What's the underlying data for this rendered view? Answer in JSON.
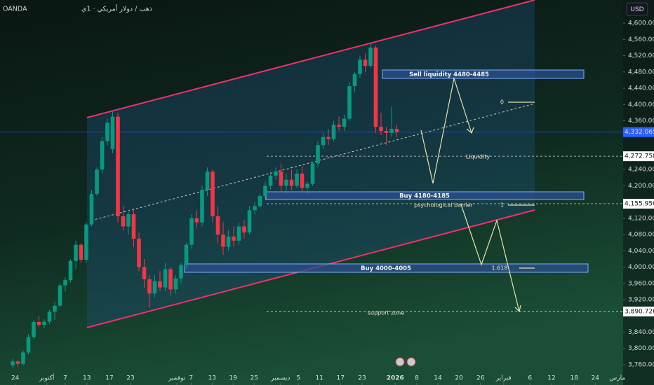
{
  "chart_data": {
    "type": "candlestick",
    "broker": "OANDA",
    "symbol_title": "ذهب / دولار أمريكي · 1ي",
    "currency": "USD",
    "ylim": [
      3710,
      4657
    ],
    "yticks": [
      {
        "value": 4600,
        "label": "4,600.000"
      },
      {
        "value": 4560,
        "label": "4,560.000"
      },
      {
        "value": 4520,
        "label": "4,520.000"
      },
      {
        "value": 4480,
        "label": "4,480.000"
      },
      {
        "value": 4440,
        "label": "4,440.000"
      },
      {
        "value": 4400,
        "label": "4,400.000"
      },
      {
        "value": 4360,
        "label": "4,360.000"
      },
      {
        "value": 4240,
        "label": "4,240.000"
      },
      {
        "value": 4200,
        "label": "4,200.000"
      },
      {
        "value": 4120,
        "label": "4,120.000"
      },
      {
        "value": 4080,
        "label": "4,080.000"
      },
      {
        "value": 4040,
        "label": "4,040.000"
      },
      {
        "value": 4000,
        "label": "4,000.000"
      },
      {
        "value": 3960,
        "label": "3,960.000"
      },
      {
        "value": 3920,
        "label": "3,920.000"
      },
      {
        "value": 3840,
        "label": "3,840.000"
      },
      {
        "value": 3800,
        "label": "3,800.000"
      },
      {
        "value": 3760,
        "label": "3,760.000"
      }
    ],
    "xlim": [
      -2.4,
      116
    ],
    "xticks": [
      {
        "value": 0.5,
        "label": "24"
      },
      {
        "value": 6.5,
        "label": "أكتوبر"
      },
      {
        "value": 10,
        "label": "7"
      },
      {
        "value": 14.1,
        "label": "13"
      },
      {
        "value": 18.4,
        "label": "17"
      },
      {
        "value": 22.4,
        "label": "23"
      },
      {
        "value": 31.2,
        "label": "نوفمبر"
      },
      {
        "value": 33.9,
        "label": "7"
      },
      {
        "value": 37.9,
        "label": "13"
      },
      {
        "value": 41.9,
        "label": "19"
      },
      {
        "value": 45.9,
        "label": "25"
      },
      {
        "value": 50.9,
        "label": "ديسمبر"
      },
      {
        "value": 54.3,
        "label": "5"
      },
      {
        "value": 58.3,
        "label": "11"
      },
      {
        "value": 62.3,
        "label": "17"
      },
      {
        "value": 66.4,
        "label": "23"
      },
      {
        "value": 72.7,
        "label": "2026"
      },
      {
        "value": 76.8,
        "label": "8"
      },
      {
        "value": 80.8,
        "label": "14"
      },
      {
        "value": 84.8,
        "label": "20"
      },
      {
        "value": 88.9,
        "label": "26"
      },
      {
        "value": 93.3,
        "label": "فبراير"
      },
      {
        "value": 98.3,
        "label": "6"
      },
      {
        "value": 102.4,
        "label": "12"
      },
      {
        "value": 106.7,
        "label": "18"
      },
      {
        "value": 110.7,
        "label": "24"
      },
      {
        "value": 114.9,
        "label": "مارس"
      }
    ],
    "up_color": "#089981",
    "down_color": "#f23645",
    "open": [
      3758,
      3768,
      3762,
      3790,
      3828,
      3865,
      3858,
      3866,
      3890,
      3905,
      3955,
      3968,
      4015,
      4055,
      4018,
      4105,
      4180,
      4240,
      4310,
      4290,
      4370,
      4125,
      4100,
      4130,
      4070,
      4000,
      3970,
      3935,
      3965,
      3950,
      3995,
      3945,
      3972,
      4005,
      4055,
      4120,
      4110,
      4190,
      4235,
      4125,
      4080,
      4050,
      4075,
      4065,
      4100,
      4085,
      4140,
      4150,
      4175,
      4200,
      4225,
      4235,
      4200,
      4215,
      4200,
      4230,
      4195,
      4205,
      4255,
      4300,
      4320,
      4315,
      4350,
      4345,
      4365,
      4445,
      4475,
      4510,
      4495,
      4540,
      4345,
      4335,
      4330,
      4340
    ],
    "high": [
      3775,
      3770,
      3795,
      3835,
      3870,
      3880,
      3872,
      3895,
      3915,
      3960,
      3975,
      4020,
      4065,
      4060,
      4110,
      4190,
      4245,
      4320,
      4365,
      4385,
      4380,
      4150,
      4135,
      4140,
      4085,
      4020,
      3980,
      3980,
      3990,
      4010,
      4000,
      3980,
      4010,
      4060,
      4130,
      4140,
      4200,
      4245,
      4240,
      4150,
      4110,
      4090,
      4100,
      4110,
      4115,
      4150,
      4160,
      4180,
      4210,
      4235,
      4245,
      4255,
      4230,
      4240,
      4240,
      4250,
      4210,
      4260,
      4310,
      4330,
      4340,
      4360,
      4370,
      4375,
      4455,
      4480,
      4520,
      4525,
      4550,
      4545,
      4380,
      4345,
      4395,
      4350
    ],
    "low": [
      3752,
      3755,
      3758,
      3785,
      3822,
      3852,
      3850,
      3860,
      3870,
      3900,
      3940,
      3962,
      3995,
      4010,
      4010,
      4100,
      4175,
      4230,
      4300,
      4280,
      4110,
      4090,
      4080,
      4050,
      3990,
      3950,
      3900,
      3925,
      3940,
      3940,
      3930,
      3935,
      3960,
      3995,
      4045,
      4095,
      4100,
      4175,
      4110,
      4060,
      4030,
      4040,
      4050,
      4055,
      4070,
      4080,
      4130,
      4145,
      4165,
      4190,
      4215,
      4185,
      4180,
      4190,
      4195,
      4185,
      4180,
      4200,
      4245,
      4290,
      4300,
      4310,
      4335,
      4335,
      4360,
      4430,
      4465,
      4480,
      4490,
      4330,
      4325,
      4300,
      4320,
      4320
    ],
    "close": [
      3768,
      3762,
      3790,
      3828,
      3865,
      3858,
      3866,
      3890,
      3905,
      3955,
      3968,
      4015,
      4055,
      4018,
      4105,
      4180,
      4240,
      4310,
      4355,
      4370,
      4125,
      4100,
      4130,
      4070,
      4000,
      3970,
      3935,
      3965,
      3950,
      3995,
      3945,
      3972,
      4005,
      4055,
      4120,
      4110,
      4190,
      4235,
      4125,
      4080,
      4050,
      4075,
      4065,
      4100,
      4085,
      4140,
      4150,
      4175,
      4200,
      4225,
      4235,
      4200,
      4215,
      4200,
      4230,
      4195,
      4205,
      4255,
      4300,
      4320,
      4315,
      4350,
      4345,
      4365,
      4445,
      4475,
      4510,
      4495,
      4540,
      4345,
      4335,
      4330,
      4340,
      4332
    ],
    "last_price": {
      "value": 4332.065,
      "label": "4,332.065"
    },
    "price_lines": [
      {
        "value": 4272.758,
        "label": "4,272.758"
      },
      {
        "value": 4155.95,
        "label": "4,155.950"
      },
      {
        "value": 3890.726,
        "label": "3,890.726"
      }
    ],
    "zones": [
      "Sell liquidity 4480-4485",
      "Buy 4180-4185",
      "Buy 4000-4005"
    ],
    "annotations": [
      "0",
      "Liquidity",
      "psychological barrier",
      "1",
      "1.618",
      "support zone"
    ]
  }
}
